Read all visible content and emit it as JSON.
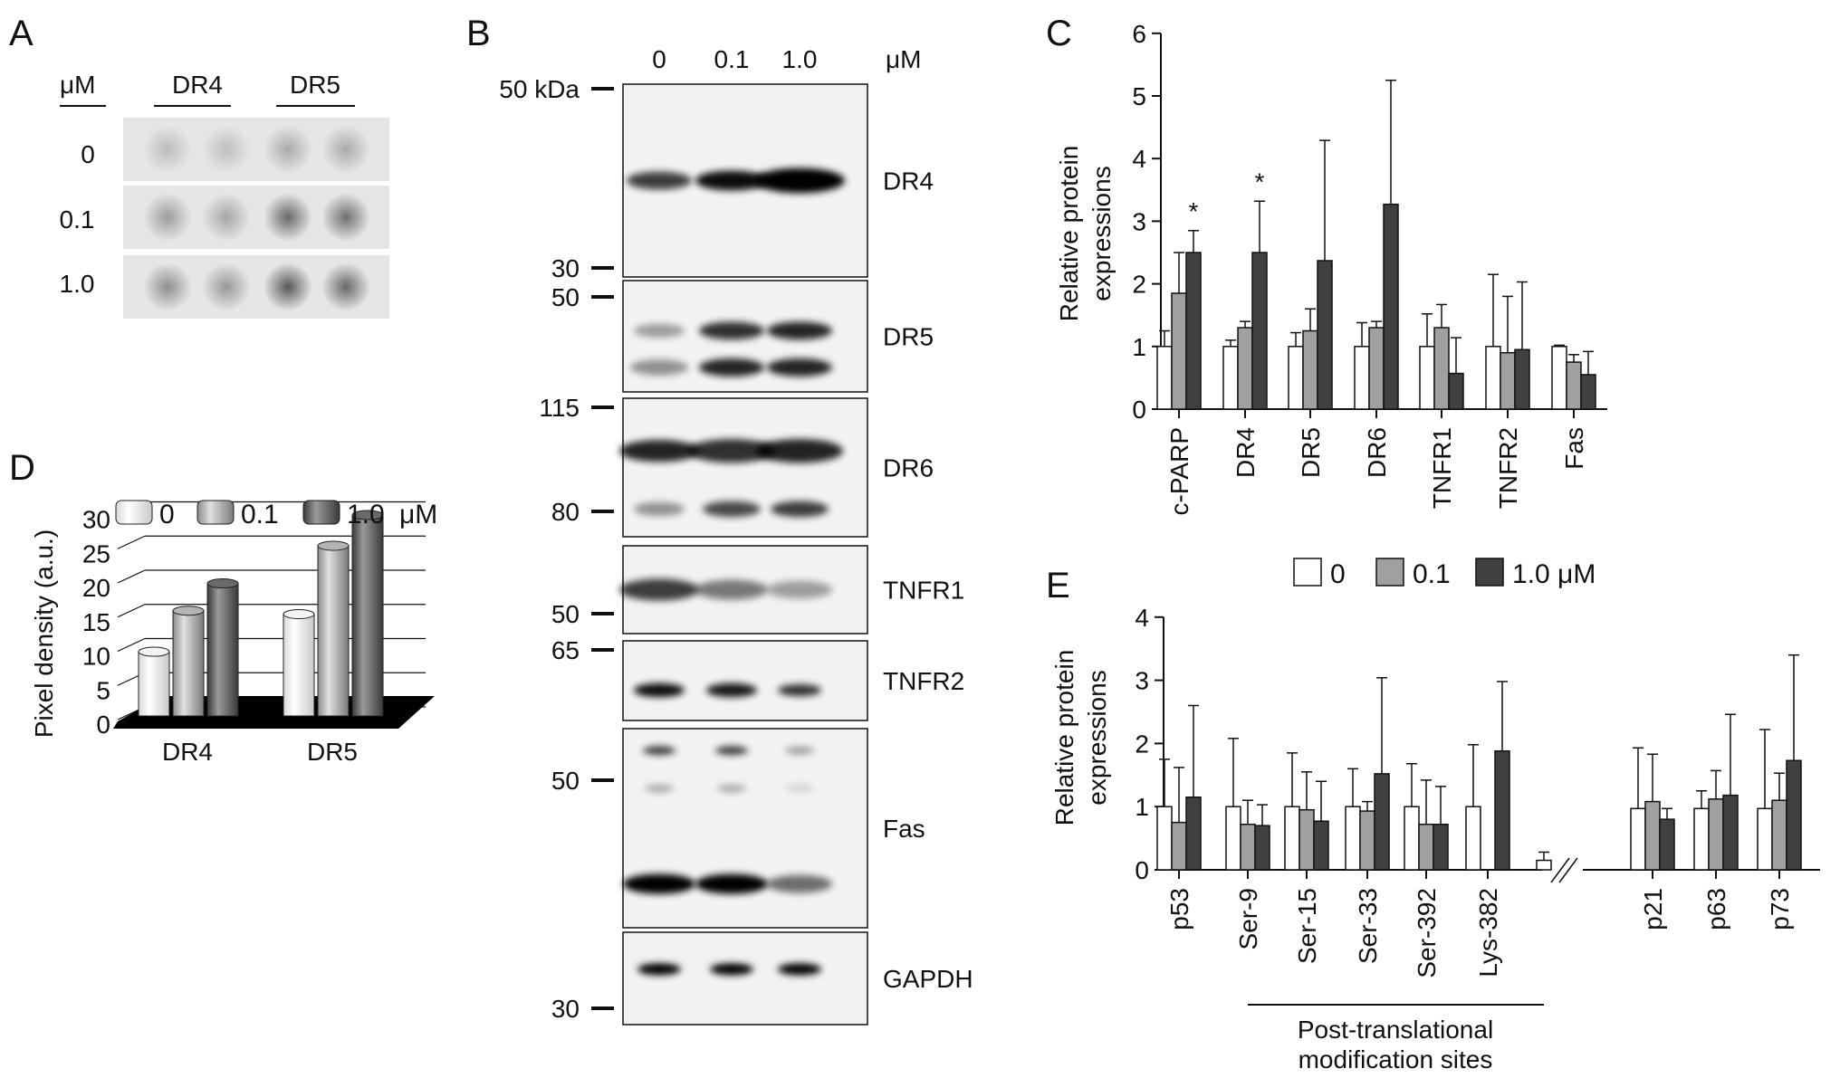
{
  "panels": {
    "A": {
      "letter": "A",
      "unit": "μM",
      "groups": [
        "DR4",
        "DR5"
      ],
      "doses": [
        "0",
        "0.1",
        "1.0"
      ],
      "dot_intensity": [
        [
          0.18,
          0.17,
          0.26,
          0.26
        ],
        [
          0.32,
          0.28,
          0.55,
          0.52
        ],
        [
          0.38,
          0.34,
          0.62,
          0.55
        ]
      ]
    },
    "B": {
      "letter": "B",
      "doses": [
        "0",
        "0.1",
        "1.0"
      ],
      "unit": "μM",
      "blots": [
        {
          "label": "DR4",
          "markers": [
            "50 kDa",
            "30"
          ],
          "bands": [
            {
              "pos": 0.5,
              "i": [
                0.75,
                0.95,
                1.0
              ],
              "w": [
                0.9,
                1.0,
                1.25
              ]
            }
          ]
        },
        {
          "label": "DR5",
          "markers": [
            "50"
          ],
          "bands": [
            {
              "pos": 0.45,
              "i": [
                0.35,
                0.8,
                0.85
              ],
              "w": [
                0.7,
                0.9,
                0.9
              ]
            },
            {
              "pos": 0.78,
              "i": [
                0.4,
                0.85,
                0.85
              ],
              "w": [
                0.8,
                0.9,
                0.9
              ]
            }
          ]
        },
        {
          "label": "DR6",
          "markers": [
            "115",
            "80"
          ],
          "bands": [
            {
              "pos": 0.38,
              "i": [
                0.85,
                0.8,
                0.85
              ],
              "w": [
                1.1,
                1.2,
                1.2
              ]
            },
            {
              "pos": 0.8,
              "i": [
                0.4,
                0.7,
                0.75
              ],
              "w": [
                0.7,
                0.8,
                0.8
              ]
            }
          ]
        },
        {
          "label": "TNFR1",
          "markers": [
            "50"
          ],
          "bands": [
            {
              "pos": 0.5,
              "i": [
                0.75,
                0.5,
                0.35
              ],
              "w": [
                1.1,
                1.0,
                0.9
              ]
            }
          ]
        },
        {
          "label": "TNFR2",
          "markers": [
            "65"
          ],
          "bands": [
            {
              "pos": 0.62,
              "i": [
                0.95,
                0.9,
                0.8
              ],
              "w": [
                0.7,
                0.7,
                0.6
              ]
            }
          ]
        },
        {
          "label": "Fas",
          "markers": [
            "50"
          ],
          "bands": [
            {
              "pos": 0.11,
              "i": [
                0.75,
                0.75,
                0.35
              ],
              "w": [
                0.45,
                0.45,
                0.4
              ]
            },
            {
              "pos": 0.3,
              "i": [
                0.3,
                0.3,
                0.12
              ],
              "w": [
                0.4,
                0.4,
                0.4
              ]
            },
            {
              "pos": 0.78,
              "i": [
                1.0,
                1.0,
                0.55
              ],
              "w": [
                1.0,
                1.0,
                0.9
              ]
            }
          ]
        },
        {
          "label": "GAPDH",
          "markers": [
            "30"
          ],
          "bands": [
            {
              "pos": 0.4,
              "i": [
                1.0,
                1.0,
                1.0
              ],
              "w": [
                0.6,
                0.6,
                0.6
              ]
            }
          ]
        }
      ]
    },
    "C": {
      "letter": "C",
      "asterisk": "*"
    },
    "D": {
      "letter": "D"
    },
    "E": {
      "letter": "E",
      "bracket_label_1": "Post-translational",
      "bracket_label_2": "modification sites"
    }
  },
  "chart_data": [
    {
      "type": "bar",
      "panel": "C",
      "ylabel": "Relative protein expressions",
      "ylim": [
        0,
        6
      ],
      "yticks": [
        0,
        1,
        2,
        3,
        4,
        5,
        6
      ],
      "categories": [
        "c-PARP",
        "DR4",
        "DR5",
        "DR6",
        "TNFR1",
        "TNFR2",
        "Fas"
      ],
      "series": [
        {
          "name": "0",
          "color": "#ffffff",
          "values": [
            1.0,
            1.0,
            1.0,
            1.0,
            1.0,
            1.0,
            1.0
          ],
          "errors": [
            0.25,
            0.1,
            0.22,
            0.38,
            0.52,
            1.15,
            0.02
          ]
        },
        {
          "name": "0.1",
          "color": "#a0a0a0",
          "values": [
            1.85,
            1.3,
            1.25,
            1.3,
            1.3,
            0.9,
            0.75
          ],
          "errors": [
            0.65,
            0.1,
            0.35,
            0.1,
            0.37,
            0.9,
            0.12
          ]
        },
        {
          "name": "1.0 μM",
          "color": "#404040",
          "values": [
            2.5,
            2.5,
            2.37,
            3.27,
            0.57,
            0.95,
            0.55
          ],
          "errors": [
            0.35,
            0.82,
            1.92,
            1.98,
            0.57,
            1.08,
            0.37
          ]
        }
      ],
      "significance": [
        {
          "category": "c-PARP",
          "series": 2,
          "mark": "*"
        },
        {
          "category": "DR4",
          "series": 2,
          "mark": "*"
        }
      ]
    },
    {
      "type": "bar",
      "panel": "D",
      "style": "3d-cylinder",
      "ylabel": "Pixel density (a.u.)",
      "ylim": [
        0,
        30
      ],
      "yticks": [
        0,
        5,
        10,
        15,
        20,
        25,
        30
      ],
      "categories": [
        "DR4",
        "DR5"
      ],
      "series": [
        {
          "name": "0",
          "color": "#f4f4f4",
          "values": [
            9,
            14.5
          ]
        },
        {
          "name": "0.1",
          "color": "#b4b4b4",
          "values": [
            15,
            24.5
          ]
        },
        {
          "name": "1.0",
          "color": "#6a6a6a",
          "values": [
            19,
            29
          ]
        }
      ],
      "legend": {
        "labels": [
          "0",
          "0.1",
          "1.0"
        ],
        "unit": "μM",
        "placement": "top"
      }
    },
    {
      "type": "bar",
      "panel": "E",
      "ylabel": "Relative protein expressions",
      "ylim": [
        0,
        4
      ],
      "yticks": [
        0,
        1,
        2,
        3,
        4
      ],
      "categories": [
        "p53",
        "Ser-9",
        "Ser-15",
        "Ser-33",
        "Ser-392",
        "Lys-382",
        "p21",
        "p63",
        "p73"
      ],
      "series": [
        {
          "name": "0",
          "color": "#ffffff",
          "values": [
            1.0,
            1.0,
            1.0,
            1.0,
            1.0,
            1.0,
            0.97,
            0.97,
            0.97
          ],
          "errors": [
            0.75,
            1.08,
            0.85,
            0.6,
            0.68,
            0.98,
            0.96,
            0.28,
            1.25
          ]
        },
        {
          "name": "0.1",
          "color": "#a0a0a0",
          "values": [
            0.75,
            0.72,
            0.95,
            0.93,
            0.72,
            null,
            1.08,
            1.12,
            1.1
          ],
          "errors": [
            0.87,
            0.38,
            0.6,
            0.15,
            0.7,
            null,
            0.75,
            0.45,
            0.43
          ]
        },
        {
          "name": "1.0 μM",
          "color": "#404040",
          "values": [
            1.15,
            0.7,
            0.77,
            1.52,
            0.72,
            1.88,
            0.8,
            1.18,
            1.73
          ],
          "errors": [
            1.45,
            0.33,
            0.63,
            1.52,
            0.6,
            1.1,
            0.17,
            1.28,
            1.67
          ]
        }
      ],
      "extra_bar": {
        "category": "Lys-382",
        "value": 0.15,
        "error": 0.13,
        "color": "#ffffff"
      },
      "axis_break_after": "Lys-382",
      "bracket": {
        "from": "Ser-9",
        "to": "Lys-382"
      },
      "legend": {
        "labels": [
          "0",
          "0.1",
          "1.0 μM"
        ],
        "placement": "top"
      }
    }
  ]
}
